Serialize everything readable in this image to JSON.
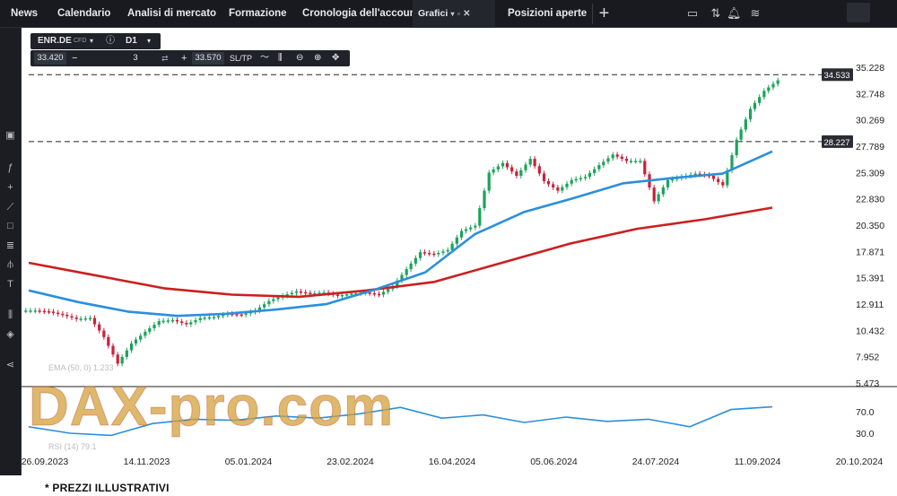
{
  "nav": {
    "tabs": [
      "News",
      "Calendario",
      "Analisi di mercato",
      "Formazione",
      "Cronologia dell'account",
      "Grafici",
      "Posizioni aperte"
    ]
  },
  "instrument": {
    "symbol": "ENR.DE",
    "type": "CFD",
    "timeframe": "D1",
    "bid": "33.420",
    "ask": "33.570",
    "quantity": "3",
    "sltp": "SL/TP"
  },
  "levels": [
    {
      "value": 34.533,
      "label": "34.533"
    },
    {
      "value": 28.227,
      "label": "28.227"
    }
  ],
  "price_axis": [
    "35.228",
    "32.748",
    "30.269",
    "27.789",
    "25.309",
    "22.830",
    "20.350",
    "17.871",
    "15.391",
    "12.911",
    "10.432",
    "7.952",
    "5.473"
  ],
  "date_axis": [
    "26.09.2023",
    "14.11.2023",
    "05.01.2024",
    "23.02.2024",
    "16.04.2024",
    "05.06.2024",
    "24.07.2024",
    "11.09.2024",
    "20.10.2024"
  ],
  "indicators": {
    "ema_label": "EMA (50, 0) 1.233",
    "rsi_label": "RSI (14) 79.1",
    "rsi_axis": [
      "70.0",
      "30.0"
    ]
  },
  "watermark": "DAX-pro.com",
  "footnote": "* PREZZI ILLUSTRATIVI",
  "colors": {
    "up": "#1aa35a",
    "down": "#c9213a",
    "ema_blue": "#2b8fdd",
    "ema_red": "#cc1f1f",
    "rsi": "#2b8fdd"
  },
  "chart_data": {
    "type": "candlestick",
    "ylim": [
      5.473,
      35.228
    ],
    "x": [
      "26.09.2023",
      "14.11.2023",
      "05.01.2024",
      "23.02.2024",
      "16.04.2024",
      "05.06.2024",
      "24.07.2024",
      "11.09.2024",
      "20.10.2024"
    ],
    "close_series": [
      [
        "26.09.2023",
        12.3
      ],
      [
        "03.10.2023",
        12.2
      ],
      [
        "10.10.2023",
        11.9
      ],
      [
        "17.10.2023",
        11.5
      ],
      [
        "24.10.2023",
        11.6
      ],
      [
        "30.10.2023",
        9.8
      ],
      [
        "01.11.2023",
        7.3
      ],
      [
        "07.11.2023",
        9.2
      ],
      [
        "14.11.2023",
        10.3
      ],
      [
        "21.11.2023",
        11.3
      ],
      [
        "28.11.2023",
        11.4
      ],
      [
        "05.12.2023",
        11.0
      ],
      [
        "12.12.2023",
        11.6
      ],
      [
        "19.12.2023",
        11.7
      ],
      [
        "27.12.2023",
        12.0
      ],
      [
        "05.01.2024",
        11.9
      ],
      [
        "12.01.2024",
        12.3
      ],
      [
        "19.01.2024",
        13.2
      ],
      [
        "26.01.2024",
        13.7
      ],
      [
        "02.02.2024",
        14.1
      ],
      [
        "09.02.2024",
        13.9
      ],
      [
        "16.02.2024",
        14.0
      ],
      [
        "23.02.2024",
        13.7
      ],
      [
        "01.03.2024",
        13.9
      ],
      [
        "08.03.2024",
        14.0
      ],
      [
        "15.03.2024",
        13.8
      ],
      [
        "22.03.2024",
        14.6
      ],
      [
        "29.03.2024",
        16.2
      ],
      [
        "05.04.2024",
        17.8
      ],
      [
        "12.04.2024",
        17.6
      ],
      [
        "16.04.2024",
        18.0
      ],
      [
        "23.04.2024",
        19.8
      ],
      [
        "30.04.2024",
        20.3
      ],
      [
        "07.05.2024",
        25.3
      ],
      [
        "14.05.2024",
        26.2
      ],
      [
        "21.05.2024",
        25.0
      ],
      [
        "28.05.2024",
        26.6
      ],
      [
        "05.06.2024",
        24.5
      ],
      [
        "12.06.2024",
        23.6
      ],
      [
        "19.06.2024",
        24.6
      ],
      [
        "26.06.2024",
        24.9
      ],
      [
        "03.07.2024",
        26.0
      ],
      [
        "10.07.2024",
        27.0
      ],
      [
        "17.07.2024",
        26.4
      ],
      [
        "24.07.2024",
        26.4
      ],
      [
        "31.07.2024",
        22.6
      ],
      [
        "07.08.2024",
        24.6
      ],
      [
        "14.08.2024",
        24.9
      ],
      [
        "21.08.2024",
        25.2
      ],
      [
        "28.08.2024",
        25.0
      ],
      [
        "04.09.2024",
        24.1
      ],
      [
        "11.09.2024",
        28.4
      ],
      [
        "18.09.2024",
        31.3
      ],
      [
        "25.09.2024",
        33.0
      ],
      [
        "02.10.2024",
        34.0
      ]
    ],
    "ema_blue": [
      [
        0,
        14.2
      ],
      [
        1,
        13.1
      ],
      [
        2,
        12.2
      ],
      [
        3,
        11.8
      ],
      [
        4,
        12.0
      ],
      [
        5,
        12.4
      ],
      [
        6,
        12.9
      ],
      [
        7,
        14.3
      ],
      [
        8,
        15.9
      ],
      [
        9,
        19.5
      ],
      [
        10,
        21.6
      ],
      [
        11,
        22.9
      ],
      [
        12,
        24.3
      ],
      [
        13,
        24.8
      ],
      [
        14,
        25.2
      ],
      [
        15,
        27.3
      ]
    ],
    "ema_red": [
      [
        0,
        16.8
      ],
      [
        1,
        15.6
      ],
      [
        2,
        14.4
      ],
      [
        3,
        13.8
      ],
      [
        4,
        13.6
      ],
      [
        5,
        14.2
      ],
      [
        6,
        15.0
      ],
      [
        7,
        16.8
      ],
      [
        8,
        18.6
      ],
      [
        9,
        20.0
      ],
      [
        10,
        20.9
      ],
      [
        11,
        22.0
      ]
    ],
    "rsi": [
      [
        0,
        42
      ],
      [
        1,
        30
      ],
      [
        2,
        26
      ],
      [
        3,
        48
      ],
      [
        4,
        56
      ],
      [
        5,
        54
      ],
      [
        6,
        62
      ],
      [
        7,
        58
      ],
      [
        8,
        66
      ],
      [
        9,
        78
      ],
      [
        10,
        58
      ],
      [
        11,
        64
      ],
      [
        12,
        50
      ],
      [
        13,
        60
      ],
      [
        14,
        52
      ],
      [
        15,
        56
      ],
      [
        16,
        42
      ],
      [
        17,
        74
      ],
      [
        18,
        79
      ]
    ]
  }
}
